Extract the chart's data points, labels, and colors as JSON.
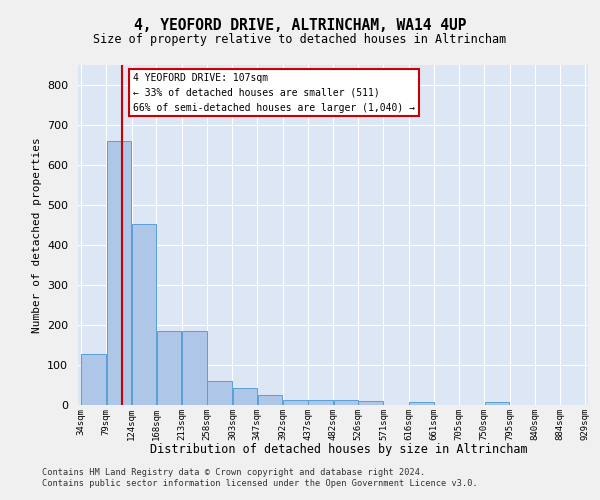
{
  "title": "4, YEOFORD DRIVE, ALTRINCHAM, WA14 4UP",
  "subtitle": "Size of property relative to detached houses in Altrincham",
  "xlabel": "Distribution of detached houses by size in Altrincham",
  "ylabel": "Number of detached properties",
  "bar_edges": [
    34,
    79,
    124,
    168,
    213,
    258,
    303,
    347,
    392,
    437,
    482,
    526,
    571,
    616,
    661,
    705,
    750,
    795,
    840,
    884,
    929
  ],
  "bar_values": [
    128,
    660,
    452,
    185,
    185,
    60,
    43,
    25,
    12,
    13,
    12,
    9,
    0,
    8,
    0,
    0,
    8,
    0,
    0,
    0
  ],
  "bar_color": "#aec6e8",
  "bar_edge_color": "#5a9fd4",
  "property_line_x": 107,
  "annotation_line1": "4 YEOFORD DRIVE: 107sqm",
  "annotation_line2": "← 33% of detached houses are smaller (511)",
  "annotation_line3": "66% of semi-detached houses are larger (1,040) →",
  "vline_color": "#cc0000",
  "annotation_edge_color": "#cc0000",
  "ylim": [
    0,
    850
  ],
  "yticks": [
    0,
    100,
    200,
    300,
    400,
    500,
    600,
    700,
    800
  ],
  "bg_color": "#dce6f5",
  "fig_bg_color": "#f0f0f0",
  "grid_color": "#ffffff",
  "footer_line1": "Contains HM Land Registry data © Crown copyright and database right 2024.",
  "footer_line2": "Contains public sector information licensed under the Open Government Licence v3.0."
}
